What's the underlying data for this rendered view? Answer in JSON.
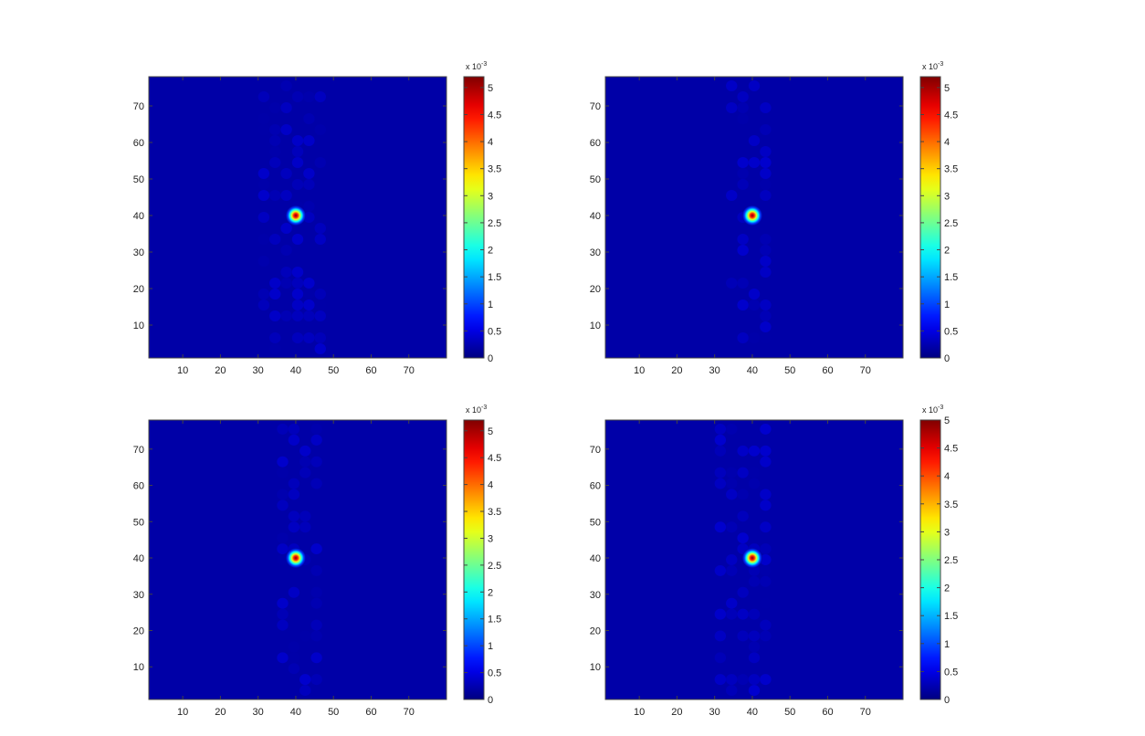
{
  "chart_data": [
    {
      "type": "heatmap",
      "title": "",
      "xlabel": "",
      "ylabel": "",
      "xlim": [
        1,
        80
      ],
      "ylim": [
        1,
        78
      ],
      "x_ticks": [
        10,
        20,
        30,
        40,
        50,
        60,
        70
      ],
      "y_ticks": [
        10,
        20,
        30,
        40,
        50,
        60,
        70
      ],
      "peak": {
        "x": 40,
        "y": 40,
        "value": 0.0052
      },
      "background_value": 0.0002,
      "noise_band": {
        "x_from": 30,
        "x_to": 48
      },
      "colorbar": {
        "colormap": "jet",
        "min": 0,
        "max": 0.0052,
        "ticks": [
          0,
          0.5,
          1,
          1.5,
          2,
          2.5,
          3,
          3.5,
          4,
          4.5,
          5
        ],
        "multiplier_text": "x 10",
        "multiplier_exponent": "-3"
      }
    },
    {
      "type": "heatmap",
      "title": "",
      "xlabel": "",
      "ylabel": "",
      "xlim": [
        1,
        80
      ],
      "ylim": [
        1,
        78
      ],
      "x_ticks": [
        10,
        20,
        30,
        40,
        50,
        60,
        70
      ],
      "y_ticks": [
        10,
        20,
        30,
        40,
        50,
        60,
        70
      ],
      "peak": {
        "x": 40,
        "y": 40,
        "value": 0.0052
      },
      "background_value": 0.0002,
      "noise_band": {
        "x_from": 33,
        "x_to": 45
      },
      "colorbar": {
        "colormap": "jet",
        "min": 0,
        "max": 0.0052,
        "ticks": [
          0,
          0.5,
          1,
          1.5,
          2,
          2.5,
          3,
          3.5,
          4,
          4.5,
          5
        ],
        "multiplier_text": "x 10",
        "multiplier_exponent": "-3"
      }
    },
    {
      "type": "heatmap",
      "title": "",
      "xlabel": "",
      "ylabel": "",
      "xlim": [
        1,
        80
      ],
      "ylim": [
        1,
        78
      ],
      "x_ticks": [
        10,
        20,
        30,
        40,
        50,
        60,
        70
      ],
      "y_ticks": [
        10,
        20,
        30,
        40,
        50,
        60,
        70
      ],
      "peak": {
        "x": 40,
        "y": 40,
        "value": 0.0052
      },
      "background_value": 0.0002,
      "noise_band": {
        "x_from": 35,
        "x_to": 45
      },
      "colorbar": {
        "colormap": "jet",
        "min": 0,
        "max": 0.0052,
        "ticks": [
          0,
          0.5,
          1,
          1.5,
          2,
          2.5,
          3,
          3.5,
          4,
          4.5,
          5
        ],
        "multiplier_text": "x 10",
        "multiplier_exponent": "-3"
      }
    },
    {
      "type": "heatmap",
      "title": "",
      "xlabel": "",
      "ylabel": "",
      "xlim": [
        1,
        80
      ],
      "ylim": [
        1,
        78
      ],
      "x_ticks": [
        10,
        20,
        30,
        40,
        50,
        60,
        70
      ],
      "y_ticks": [
        10,
        20,
        30,
        40,
        50,
        60,
        70
      ],
      "peak": {
        "x": 40,
        "y": 40,
        "value": 0.005
      },
      "background_value": 0.0002,
      "noise_band": {
        "x_from": 30,
        "x_to": 45
      },
      "colorbar": {
        "colormap": "jet",
        "min": 0,
        "max": 0.005,
        "ticks": [
          0,
          0.5,
          1,
          1.5,
          2,
          2.5,
          3,
          3.5,
          4,
          4.5,
          5
        ],
        "multiplier_text": "x 10",
        "multiplier_exponent": "-3"
      }
    }
  ]
}
